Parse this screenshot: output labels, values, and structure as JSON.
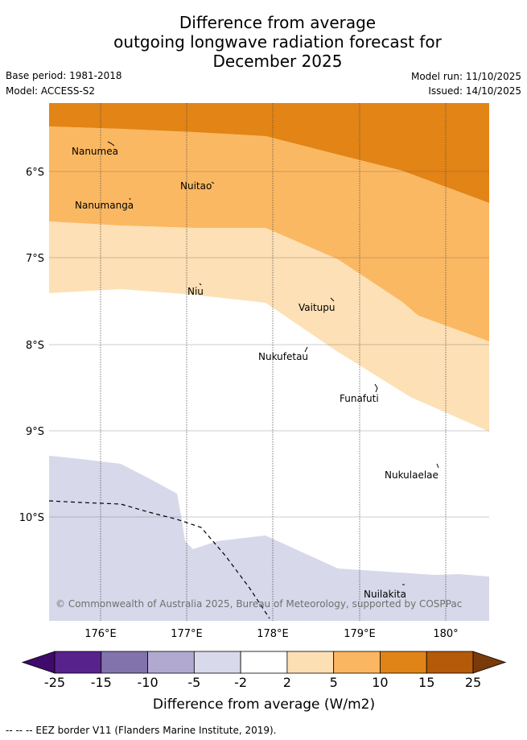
{
  "title": {
    "line1": "Difference from average",
    "line2": "outgoing longwave radiation forecast for",
    "line3": "December 2025"
  },
  "meta": {
    "base_period": "Base period: 1981-2018",
    "model": "Model: ACCESS-S2",
    "model_run": "Model run: 11/10/2025",
    "issued": "Issued: 14/10/2025"
  },
  "map": {
    "lat_ticks": [
      "6°S",
      "7°S",
      "8°S",
      "9°S",
      "10°S"
    ],
    "lon_ticks": [
      "176°E",
      "177°E",
      "178°E",
      "179°E",
      "180°"
    ],
    "places": [
      {
        "name": "Nanumea"
      },
      {
        "name": "Nuitao"
      },
      {
        "name": "Nanumanga"
      },
      {
        "name": "Niu"
      },
      {
        "name": "Vaitupu"
      },
      {
        "name": "Nukufetau"
      },
      {
        "name": "Funafuti"
      },
      {
        "name": "Nukulaelae"
      },
      {
        "name": "Nuilakita"
      }
    ],
    "copyright": "© Commonwealth of Australia 2025, Bureau of Meteorology, supported by COSPPac"
  },
  "colorbar": {
    "labels": [
      "-25",
      "-15",
      "-10",
      "-5",
      "-2",
      "2",
      "5",
      "10",
      "15",
      "25"
    ],
    "colors": [
      "#3f0a6b",
      "#58228c",
      "#8273ad",
      "#b1a9d0",
      "#d8d9ea",
      "#ffffff",
      "#fddfb4",
      "#fbb661",
      "#e08417",
      "#b55a09",
      "#7a3a0a"
    ],
    "title": "Difference from average (W/m2)"
  },
  "footnote": "--  --  -- EEZ border V11 (Flanders Marine Institute, 2019)."
}
